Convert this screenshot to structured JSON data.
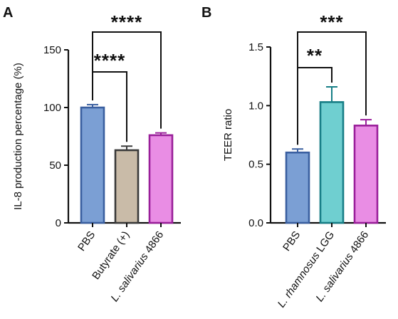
{
  "chart_data": [
    {
      "panel": "A",
      "type": "bar",
      "ylabel": "IL-8 production percentage (%)",
      "ylim": [
        0,
        150
      ],
      "yticks": [
        0,
        50,
        100,
        150
      ],
      "categories": [
        {
          "prefix": "",
          "italic": "",
          "suffix": "PBS"
        },
        {
          "prefix": "",
          "italic": "",
          "suffix": "Butyrate (+)"
        },
        {
          "prefix": "",
          "italic": "L. salivarius",
          "suffix": " 4866"
        }
      ],
      "values": [
        100,
        63,
        76
      ],
      "errors": [
        2.5,
        3.5,
        2
      ],
      "colors": [
        "#7b9fd4",
        "#c9bba8",
        "#e98de4"
      ],
      "edge_colors": [
        "#3a5fa0",
        "#3a3a3a",
        "#9a1f9a"
      ],
      "significance": [
        {
          "from": 0,
          "to": 1,
          "label": "****"
        },
        {
          "from": 0,
          "to": 2,
          "label": "****"
        }
      ]
    },
    {
      "panel": "B",
      "type": "bar",
      "ylabel": "TEER ratio",
      "ylim": [
        0,
        1.5
      ],
      "yticks": [
        "0.0",
        "0.5",
        "1.0",
        "1.5"
      ],
      "categories": [
        {
          "prefix": "",
          "italic": "",
          "suffix": "PBS"
        },
        {
          "prefix": "",
          "italic": "L. rhamnosus",
          "suffix": " LGG"
        },
        {
          "prefix": "",
          "italic": "L. salivarius",
          "suffix": " 4866"
        }
      ],
      "values": [
        0.6,
        1.03,
        0.83
      ],
      "errors": [
        0.03,
        0.13,
        0.05
      ],
      "colors": [
        "#7b9fd4",
        "#6fcfd0",
        "#e98de4"
      ],
      "edge_colors": [
        "#3a5fa0",
        "#177e86",
        "#9a1f9a"
      ],
      "significance": [
        {
          "from": 0,
          "to": 1,
          "label": "**"
        },
        {
          "from": 0,
          "to": 2,
          "label": "***"
        }
      ]
    }
  ]
}
